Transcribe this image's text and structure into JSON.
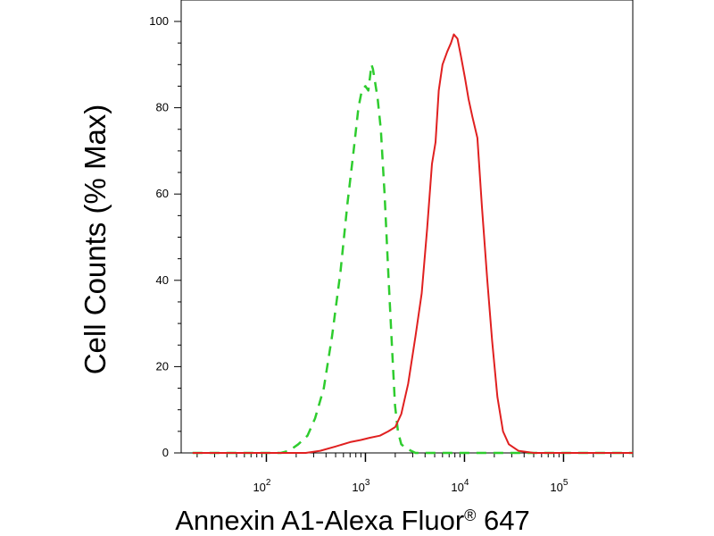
{
  "chart_data": {
    "type": "line",
    "xlabel": "Annexin A1-Alexa Fluor",
    "xlabel_superscript": "®",
    "xlabel_suffix": " 647",
    "ylabel": "Cell Counts (% Max)",
    "x_scale": "log",
    "xlim": [
      13.8,
      500000
    ],
    "ylim": [
      0,
      100
    ],
    "y_ticks": [
      0,
      20,
      40,
      60,
      80,
      100
    ],
    "x_tick_labels": [
      {
        "base": "10",
        "exp": "2",
        "value": 100
      },
      {
        "base": "10",
        "exp": "3",
        "value": 1000
      },
      {
        "base": "10",
        "exp": "4",
        "value": 10000
      },
      {
        "base": "10",
        "exp": "5",
        "value": 100000
      }
    ],
    "grid": false,
    "series": [
      {
        "color": "#2ecc2e",
        "style": "dashed",
        "points": [
          [
            18,
            0
          ],
          [
            100,
            0
          ],
          [
            140,
            0
          ],
          [
            170,
            0.5
          ],
          [
            210,
            2
          ],
          [
            260,
            4
          ],
          [
            310,
            8
          ],
          [
            380,
            15
          ],
          [
            460,
            27
          ],
          [
            560,
            42
          ],
          [
            660,
            58
          ],
          [
            760,
            70
          ],
          [
            850,
            80
          ],
          [
            920,
            84
          ],
          [
            1000,
            85
          ],
          [
            1070,
            84
          ],
          [
            1110,
            87
          ],
          [
            1150,
            90
          ],
          [
            1190,
            89
          ],
          [
            1250,
            86
          ],
          [
            1330,
            82
          ],
          [
            1430,
            75
          ],
          [
            1560,
            60
          ],
          [
            1700,
            42
          ],
          [
            1850,
            25
          ],
          [
            1990,
            11
          ],
          [
            2130,
            5
          ],
          [
            2300,
            2
          ],
          [
            2600,
            1
          ],
          [
            3200,
            0
          ],
          [
            10000,
            0
          ],
          [
            200000,
            0
          ],
          [
            500000,
            0
          ]
        ]
      },
      {
        "color": "#e02020",
        "style": "solid",
        "points": [
          [
            18,
            0
          ],
          [
            120,
            0
          ],
          [
            250,
            0
          ],
          [
            350,
            0.5
          ],
          [
            500,
            1.5
          ],
          [
            700,
            2.5
          ],
          [
            900,
            3
          ],
          [
            1100,
            3.5
          ],
          [
            1400,
            4
          ],
          [
            1700,
            5
          ],
          [
            2000,
            6
          ],
          [
            2300,
            9
          ],
          [
            2700,
            16
          ],
          [
            3200,
            27
          ],
          [
            3700,
            37
          ],
          [
            4200,
            52
          ],
          [
            4700,
            67
          ],
          [
            5100,
            72
          ],
          [
            5500,
            84
          ],
          [
            6000,
            90
          ],
          [
            6700,
            93
          ],
          [
            7300,
            95
          ],
          [
            7800,
            97
          ],
          [
            8500,
            96
          ],
          [
            9200,
            92
          ],
          [
            10100,
            87
          ],
          [
            11000,
            82
          ],
          [
            12000,
            78
          ],
          [
            13500,
            73
          ],
          [
            15000,
            57
          ],
          [
            17000,
            40
          ],
          [
            19000,
            26
          ],
          [
            21500,
            13
          ],
          [
            24500,
            5
          ],
          [
            28000,
            2
          ],
          [
            35000,
            0.5
          ],
          [
            50000,
            0
          ],
          [
            100000,
            0
          ],
          [
            500000,
            0
          ]
        ]
      }
    ]
  }
}
